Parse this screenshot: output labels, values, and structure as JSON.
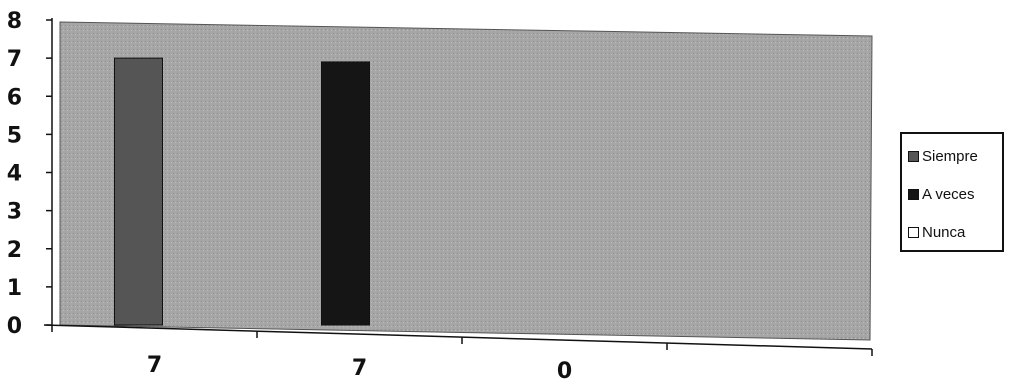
{
  "chart_data": {
    "type": "bar",
    "categories": [
      "7",
      "7",
      "0"
    ],
    "series": [
      {
        "name": "Siempre",
        "values": [
          7,
          null,
          null
        ],
        "color": "#555555"
      },
      {
        "name": "A veces",
        "values": [
          null,
          6.9,
          null
        ],
        "color": "#151515"
      },
      {
        "name": "Nunca",
        "values": [
          null,
          null,
          0
        ],
        "color": "#ffffff"
      }
    ],
    "yticks": [
      "0",
      "1",
      "2",
      "3",
      "4",
      "5",
      "6",
      "7",
      "8"
    ],
    "ylim": [
      0,
      8
    ],
    "grid": false,
    "legend_position": "right",
    "plot_background": "#a6a6a6"
  },
  "legend": {
    "items": [
      {
        "label": "Siempre",
        "color": "#555555"
      },
      {
        "label": "A veces",
        "color": "#151515"
      },
      {
        "label": "Nunca",
        "color": "#ffffff"
      }
    ]
  }
}
